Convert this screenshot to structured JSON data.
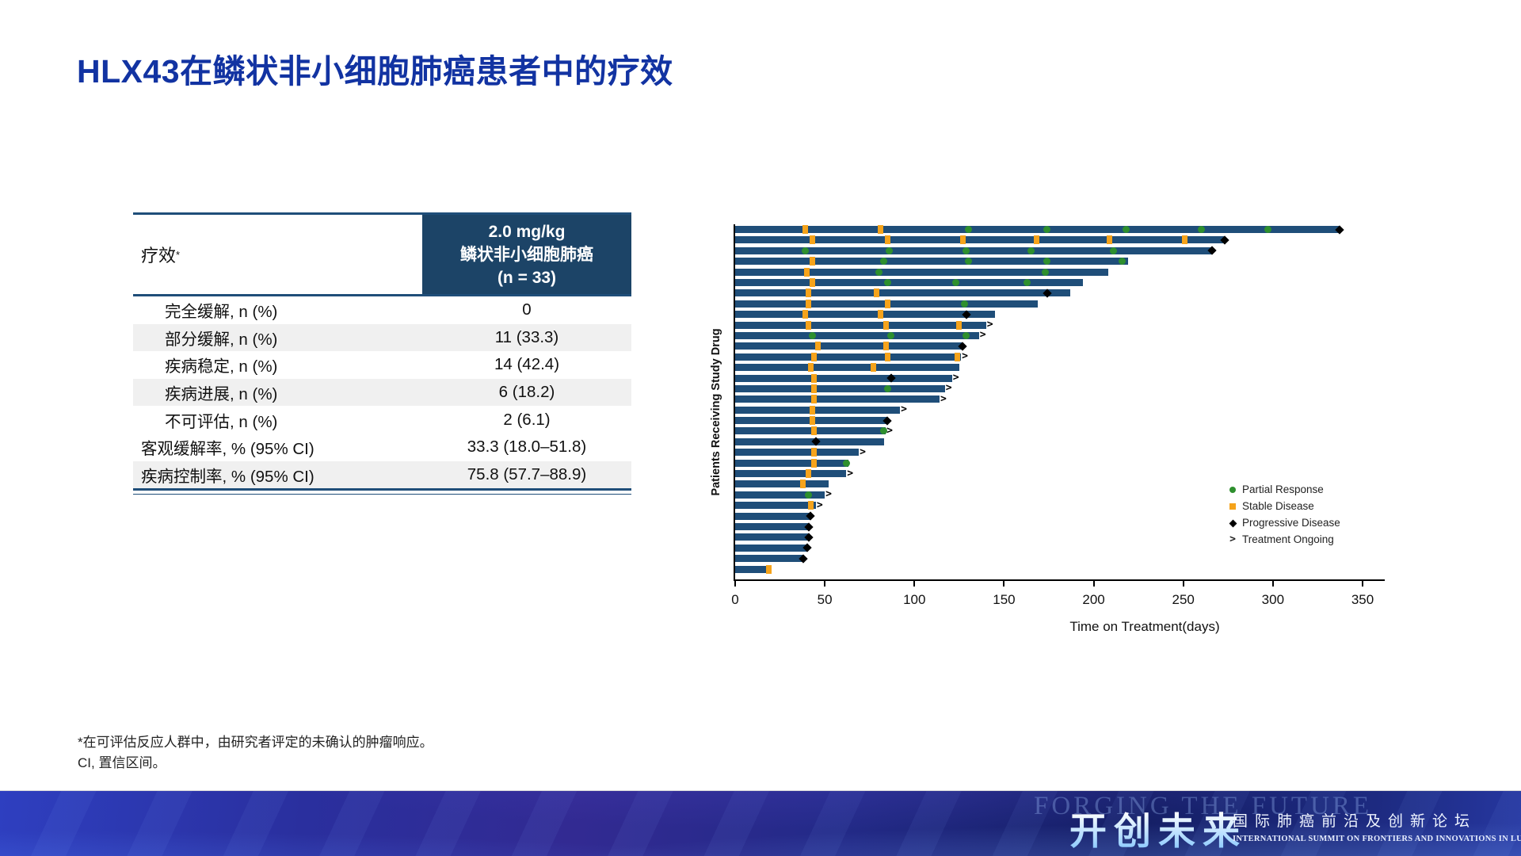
{
  "slide": {
    "title": "HLX43在鳞状非小细胞肺癌患者中的疗效"
  },
  "table": {
    "col1_header": "疗效",
    "col1_header_superscript": "*",
    "col2_header_lines": [
      "2.0 mg/kg",
      "鳞状非小细胞肺癌",
      "(n = 33)"
    ],
    "rows": [
      {
        "label": "完全缓解, n (%)",
        "value": "0",
        "shaded": false,
        "indent": true
      },
      {
        "label": "部分缓解, n (%)",
        "value": "11 (33.3)",
        "shaded": true,
        "indent": true
      },
      {
        "label": "疾病稳定, n (%)",
        "value": "14 (42.4)",
        "shaded": false,
        "indent": true
      },
      {
        "label": "疾病进展, n (%)",
        "value": "6 (18.2)",
        "shaded": true,
        "indent": true
      },
      {
        "label": "不可评估, n (%)",
        "value": "2 (6.1)",
        "shaded": false,
        "indent": true
      },
      {
        "label": "客观缓解率, % (95% CI)",
        "value": "33.3 (18.0–51.8)",
        "shaded": false,
        "indent": false
      },
      {
        "label": "疾病控制率, % (95% CI)",
        "value": "75.8 (57.7–88.9)",
        "shaded": true,
        "indent": false
      }
    ]
  },
  "footnotes": [
    "*在可评估反应人群中，由研究者评定的未确认的肿瘤响应。",
    "CI, 置信区间。"
  ],
  "chart_data": {
    "type": "bar",
    "subtype": "swimmer_plot",
    "xlabel": "Time on Treatment(days)",
    "ylabel": "Patients Receiving Study Drug",
    "x_ticks": [
      0,
      50,
      100,
      150,
      200,
      250,
      300,
      350
    ],
    "xlim": [
      0,
      362
    ],
    "n_patients": 33,
    "colors": {
      "bar": "#1F4E79",
      "partial_response": "#2E8F2E",
      "stable_disease": "#F5A31B",
      "progressive_disease": "#000000",
      "header_bg": "#1C4467",
      "title": "#1233A2"
    },
    "legend": [
      {
        "label": "Partial Response",
        "marker": "circle"
      },
      {
        "label": "Stable Disease",
        "marker": "square"
      },
      {
        "label": "Progressive Disease",
        "marker": "diamond"
      },
      {
        "label": "Treatment Ongoing",
        "marker": "arrow"
      }
    ],
    "patients": [
      {
        "days": 337,
        "events": [
          [
            39,
            "sd"
          ],
          [
            81,
            "sd"
          ],
          [
            130,
            "pr"
          ],
          [
            174,
            "pr"
          ],
          [
            218,
            "pr"
          ],
          [
            260,
            "pr"
          ],
          [
            297,
            "pr"
          ]
        ],
        "end": "pd"
      },
      {
        "days": 273,
        "events": [
          [
            43,
            "sd"
          ],
          [
            85,
            "sd"
          ],
          [
            127,
            "sd"
          ],
          [
            168,
            "sd"
          ],
          [
            209,
            "sd"
          ],
          [
            251,
            "sd"
          ]
        ],
        "end": "pd"
      },
      {
        "days": 266,
        "events": [
          [
            39,
            "pr"
          ],
          [
            86,
            "pr"
          ],
          [
            129,
            "pr"
          ],
          [
            165,
            "pr"
          ],
          [
            211,
            "pr"
          ]
        ],
        "end": "pd"
      },
      {
        "days": 219,
        "events": [
          [
            43,
            "sd"
          ],
          [
            83,
            "pr"
          ],
          [
            130,
            "pr"
          ],
          [
            174,
            "pr"
          ],
          [
            216,
            "pr"
          ]
        ],
        "end": null
      },
      {
        "days": 208,
        "events": [
          [
            40,
            "sd"
          ],
          [
            80,
            "pr"
          ],
          [
            173,
            "pr"
          ]
        ],
        "end": null
      },
      {
        "days": 194,
        "events": [
          [
            43,
            "sd"
          ],
          [
            85,
            "pr"
          ],
          [
            123,
            "pr"
          ],
          [
            163,
            "pr"
          ]
        ],
        "end": null
      },
      {
        "days": 187,
        "events": [
          [
            41,
            "sd"
          ],
          [
            79,
            "sd"
          ],
          [
            174,
            "pd"
          ]
        ],
        "end": null
      },
      {
        "days": 169,
        "events": [
          [
            41,
            "sd"
          ],
          [
            85,
            "sd"
          ],
          [
            128,
            "pr"
          ]
        ],
        "end": null
      },
      {
        "days": 145,
        "events": [
          [
            39,
            "sd"
          ],
          [
            81,
            "sd"
          ],
          [
            129,
            "pd"
          ]
        ],
        "end": null
      },
      {
        "days": 140,
        "events": [
          [
            41,
            "sd"
          ],
          [
            84,
            "sd"
          ],
          [
            125,
            "sd"
          ]
        ],
        "end": "ongoing"
      },
      {
        "days": 136,
        "events": [
          [
            43,
            "pr"
          ],
          [
            87,
            "pr"
          ],
          [
            129,
            "pr"
          ]
        ],
        "end": "ongoing"
      },
      {
        "days": 127,
        "events": [
          [
            46,
            "sd"
          ],
          [
            84,
            "sd"
          ]
        ],
        "end": "pd"
      },
      {
        "days": 126,
        "events": [
          [
            44,
            "sd"
          ],
          [
            85,
            "sd"
          ],
          [
            124,
            "sd"
          ]
        ],
        "end": "ongoing"
      },
      {
        "days": 125,
        "events": [
          [
            42,
            "sd"
          ],
          [
            77,
            "sd"
          ]
        ],
        "end": null
      },
      {
        "days": 121,
        "events": [
          [
            44,
            "sd"
          ],
          [
            87,
            "pd"
          ]
        ],
        "end": "ongoing"
      },
      {
        "days": 117,
        "events": [
          [
            44,
            "sd"
          ],
          [
            85,
            "pr"
          ]
        ],
        "end": "ongoing"
      },
      {
        "days": 114,
        "events": [
          [
            44,
            "sd"
          ]
        ],
        "end": "ongoing"
      },
      {
        "days": 92,
        "events": [
          [
            43,
            "sd"
          ]
        ],
        "end": "ongoing"
      },
      {
        "days": 85,
        "events": [
          [
            43,
            "sd"
          ]
        ],
        "end": "pd"
      },
      {
        "days": 84,
        "events": [
          [
            44,
            "sd"
          ],
          [
            83,
            "pr"
          ]
        ],
        "end": "ongoing"
      },
      {
        "days": 83,
        "events": [
          [
            45,
            "pd"
          ]
        ],
        "end": null
      },
      {
        "days": 69,
        "events": [
          [
            44,
            "sd"
          ]
        ],
        "end": "ongoing"
      },
      {
        "days": 63,
        "events": [
          [
            44,
            "sd"
          ],
          [
            62,
            "pr"
          ]
        ],
        "end": null
      },
      {
        "days": 62,
        "events": [
          [
            41,
            "sd"
          ]
        ],
        "end": "ongoing"
      },
      {
        "days": 52,
        "events": [
          [
            38,
            "sd"
          ]
        ],
        "end": null
      },
      {
        "days": 50,
        "events": [
          [
            41,
            "pr"
          ]
        ],
        "end": "ongoing"
      },
      {
        "days": 45,
        "events": [
          [
            42,
            "sd"
          ]
        ],
        "end": "ongoing"
      },
      {
        "days": 42,
        "events": [],
        "end": "pd"
      },
      {
        "days": 41,
        "events": [],
        "end": "pd"
      },
      {
        "days": 41,
        "events": [],
        "end": "pd"
      },
      {
        "days": 40,
        "events": [],
        "end": "pd"
      },
      {
        "days": 38,
        "events": [],
        "end": "pd"
      },
      {
        "days": 20,
        "events": [
          [
            19,
            "sd"
          ]
        ],
        "end": null
      }
    ]
  },
  "footer": {
    "ghost_text": "FORGING THE FUTURE",
    "brand_cn": "开创未来",
    "brand_cn_subtitle": "国际肺癌前沿及创新论坛",
    "brand_en_subtitle": "INTERNATIONAL SUMMIT ON FRONTIERS AND INNOVATIONS IN LUNG CANCER"
  }
}
